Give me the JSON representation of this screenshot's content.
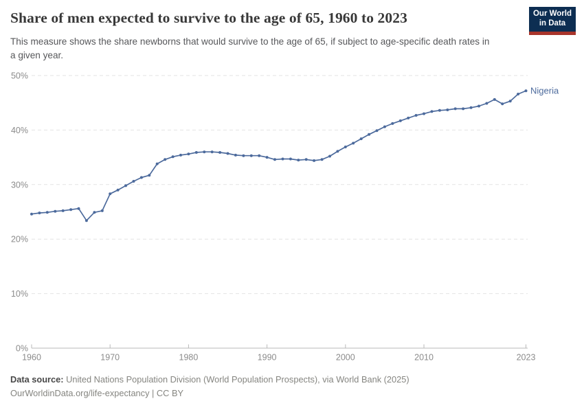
{
  "header": {
    "title": "Share of men expected to survive to the age of 65, 1960 to 2023",
    "subtitle": "This measure shows the share newborns that would survive to the age of 65, if subject to age-specific death rates in a given year.",
    "logo": {
      "line1": "Our World",
      "line2": "in Data"
    }
  },
  "chart_data": {
    "type": "line",
    "title": "Share of men expected to survive to the age of 65, 1960 to 2023",
    "xlabel": "",
    "ylabel": "",
    "xlim": [
      1960,
      2023
    ],
    "ylim": [
      0,
      50
    ],
    "x_ticks": [
      1960,
      1970,
      1980,
      1990,
      2000,
      2010,
      2023
    ],
    "y_ticks": [
      0,
      10,
      20,
      30,
      40,
      50
    ],
    "y_tick_suffix": "%",
    "grid": "horizontal-dashed",
    "legend_position": "end-of-line-label",
    "end_label": "Nigeria",
    "series": [
      {
        "name": "Nigeria",
        "color": "#4c6a9c",
        "x": [
          1960,
          1961,
          1962,
          1963,
          1964,
          1965,
          1966,
          1967,
          1968,
          1969,
          1970,
          1971,
          1972,
          1973,
          1974,
          1975,
          1976,
          1977,
          1978,
          1979,
          1980,
          1981,
          1982,
          1983,
          1984,
          1985,
          1986,
          1987,
          1988,
          1989,
          1990,
          1991,
          1992,
          1993,
          1994,
          1995,
          1996,
          1997,
          1998,
          1999,
          2000,
          2001,
          2002,
          2003,
          2004,
          2005,
          2006,
          2007,
          2008,
          2009,
          2010,
          2011,
          2012,
          2013,
          2014,
          2015,
          2016,
          2017,
          2018,
          2019,
          2020,
          2021,
          2022,
          2023
        ],
        "values": [
          24.6,
          24.8,
          24.9,
          25.1,
          25.2,
          25.4,
          25.6,
          23.4,
          24.9,
          25.2,
          28.3,
          29.0,
          29.8,
          30.6,
          31.3,
          31.7,
          33.8,
          34.6,
          35.1,
          35.4,
          35.6,
          35.9,
          36.0,
          36.0,
          35.9,
          35.7,
          35.4,
          35.3,
          35.3,
          35.3,
          35.0,
          34.6,
          34.7,
          34.7,
          34.5,
          34.6,
          34.4,
          34.6,
          35.2,
          36.1,
          36.9,
          37.6,
          38.4,
          39.2,
          39.9,
          40.6,
          41.2,
          41.7,
          42.2,
          42.7,
          43.0,
          43.4,
          43.6,
          43.7,
          43.9,
          43.9,
          44.1,
          44.4,
          44.9,
          45.6,
          44.8,
          45.3,
          46.6,
          47.2
        ]
      }
    ]
  },
  "footer": {
    "source_label": "Data source:",
    "source_text": "United Nations Population Division (World Population Prospects), via World Bank (2025)",
    "link_line": "OurWorldinData.org/life-expectancy | CC BY"
  },
  "colors": {
    "series_blue": "#4c6a9c",
    "grid": "#e3e3e3",
    "axis": "#b9b9b9",
    "tick_label": "#8b8b8b",
    "logo_navy": "#0d2e52",
    "logo_red": "#a8352b",
    "title_text": "#383838"
  }
}
